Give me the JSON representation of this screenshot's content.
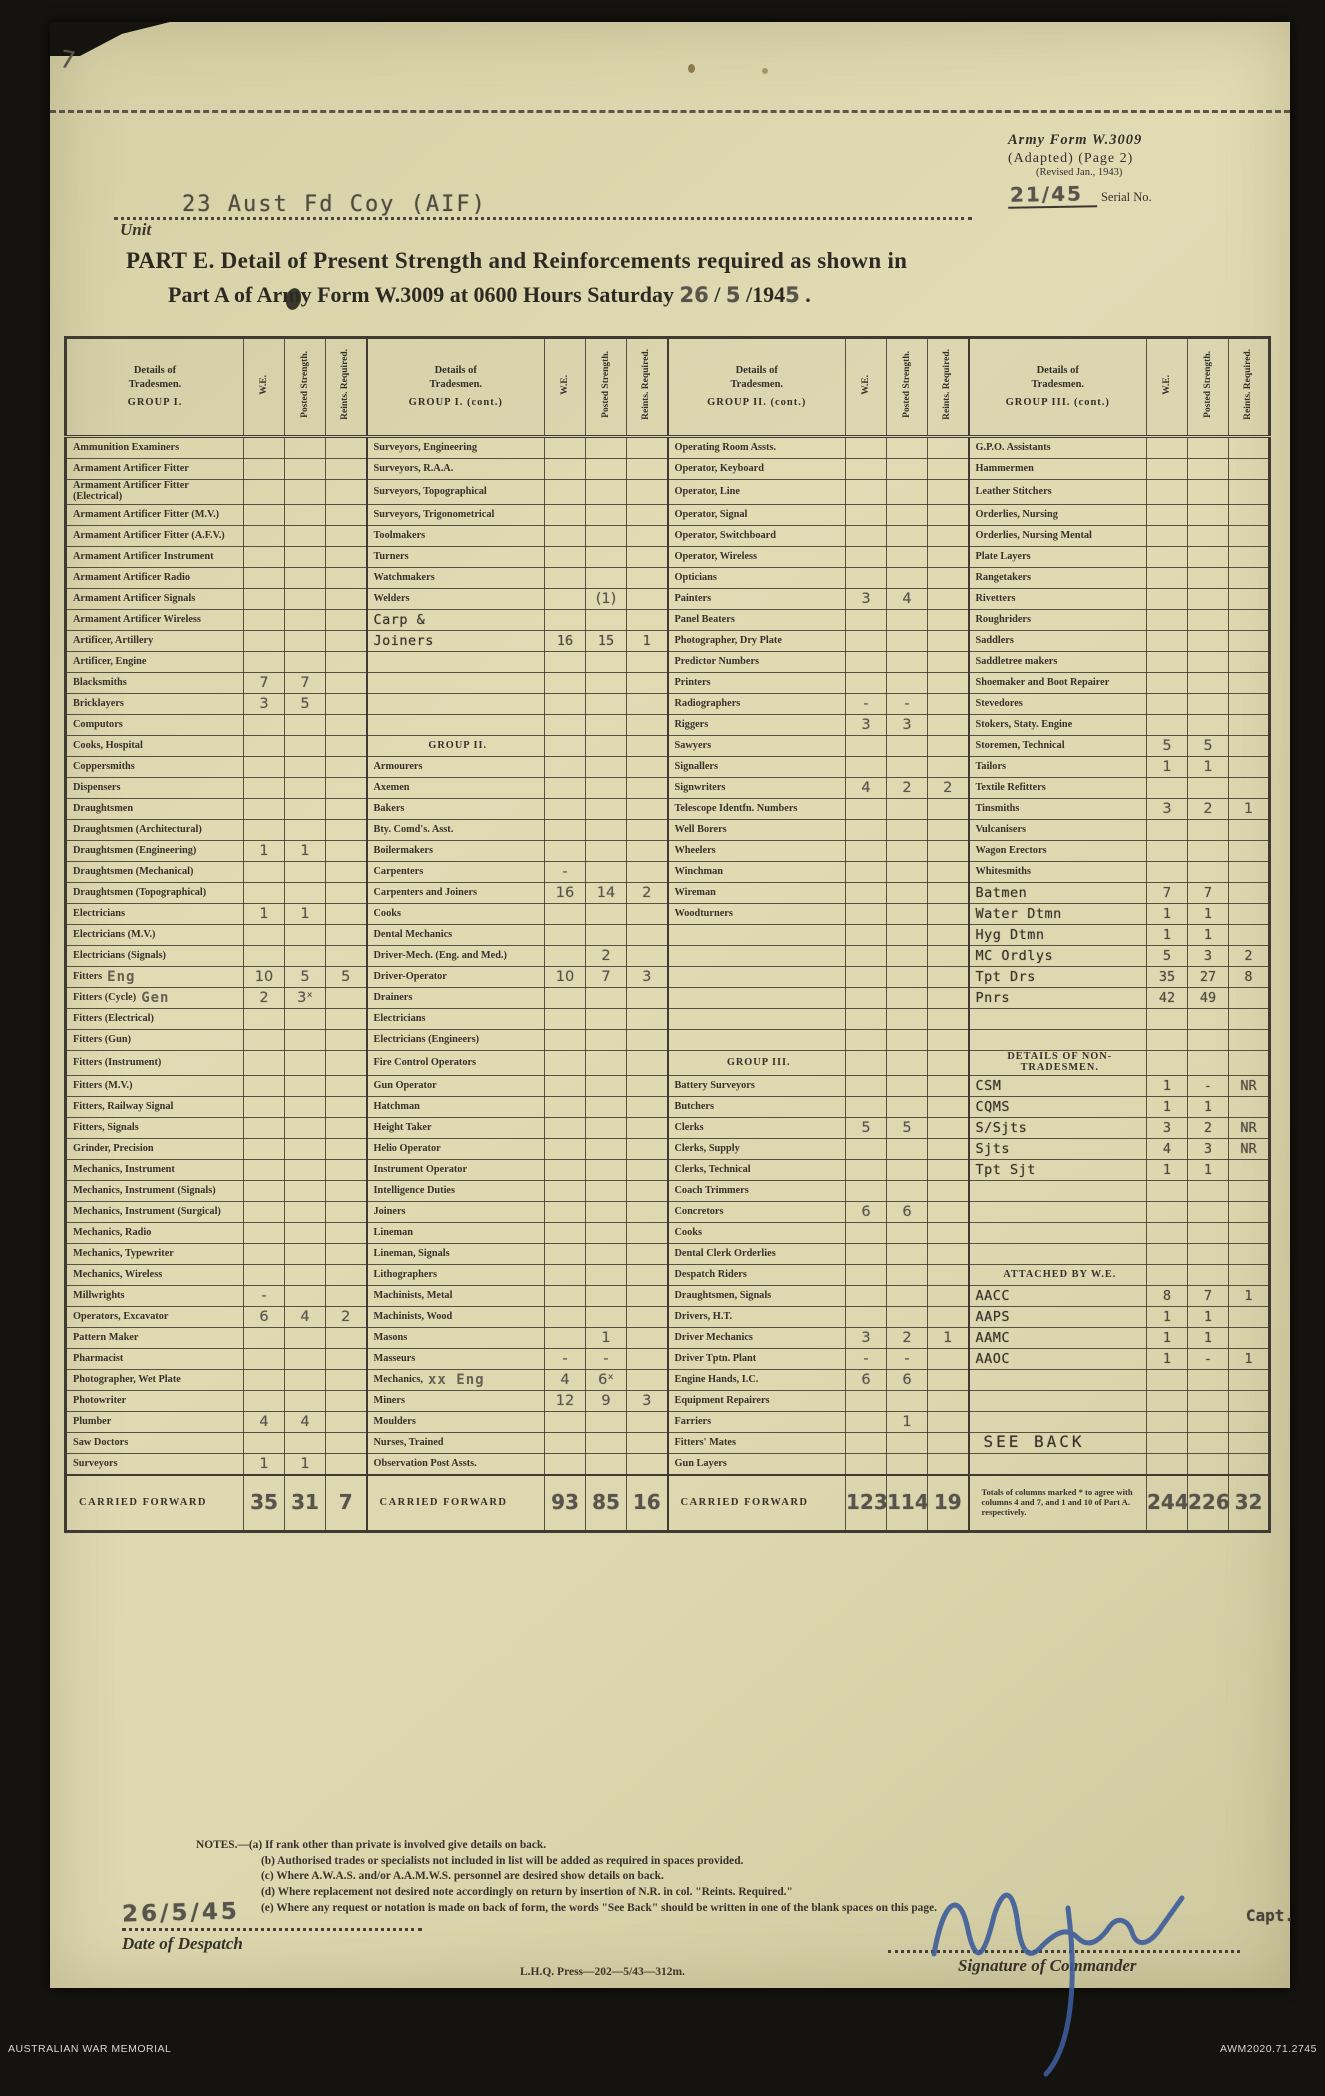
{
  "header": {
    "corner_mark": "7",
    "unit_value": "23 Aust Fd Coy (AIF)",
    "unit_label": "Unit",
    "form_name": "Army Form W.3009",
    "form_sub": "(Adapted) (Page 2)",
    "form_revised": "(Revised Jan., 1943)",
    "serial_value": "21/45",
    "serial_label": "Serial No."
  },
  "title": {
    "line1": "PART E.  Detail of Present Strength and Reinforcements required as shown in",
    "line2_printed": "Part A of Army Form W.3009 at 0600 Hours Saturday",
    "date_day": "26",
    "date_sep1": " / ",
    "date_month": "5",
    "date_sep2": " /194",
    "date_year_digit": "5",
    "date_end": " ."
  },
  "table": {
    "details_lines": [
      "Details of",
      "Tradesmen."
    ],
    "groups": [
      {
        "title": "GROUP I."
      },
      {
        "title": "GROUP I. (cont.)"
      },
      {
        "title": "GROUP II. (cont.)"
      },
      {
        "title": "GROUP III. (cont.)"
      }
    ],
    "value_headers": [
      "W.E.",
      "Posted Strength.",
      "Reints. Required."
    ],
    "rows": [
      [
        {
          "l": "Ammunition Examiners"
        },
        {
          "l": "Surveyors, Engineering"
        },
        {
          "l": "Operating Room Assts."
        },
        {
          "l": "G.P.O. Assistants"
        }
      ],
      [
        {
          "l": "Armament Artificer Fitter"
        },
        {
          "l": "Surveyors, R.A.A."
        },
        {
          "l": "Operator, Keyboard"
        },
        {
          "l": "Hammermen"
        }
      ],
      [
        {
          "l": "Armament Artificer Fitter (Electrical)"
        },
        {
          "l": "Surveyors, Topographical"
        },
        {
          "l": "Operator, Line"
        },
        {
          "l": "Leather Stitchers"
        }
      ],
      [
        {
          "l": "Armament Artificer Fitter (M.V.)"
        },
        {
          "l": "Surveyors, Trigonometrical"
        },
        {
          "l": "Operator, Signal"
        },
        {
          "l": "Orderlies, Nursing"
        }
      ],
      [
        {
          "l": "Armament Artificer Fitter (A.F.V.)"
        },
        {
          "l": "Toolmakers"
        },
        {
          "l": "Operator, Switchboard"
        },
        {
          "l": "Orderlies, Nursing Mental"
        }
      ],
      [
        {
          "l": "Armament Artificer Instrument"
        },
        {
          "l": "Turners"
        },
        {
          "l": "Operator, Wireless"
        },
        {
          "l": "Plate Layers"
        }
      ],
      [
        {
          "l": "Armament Artificer Radio"
        },
        {
          "l": "Watchmakers"
        },
        {
          "l": "Opticians"
        },
        {
          "l": "Rangetakers"
        }
      ],
      [
        {
          "l": "Armament Artificer Signals"
        },
        {
          "l": "Welders",
          "ps": "(1)"
        },
        {
          "l": "Painters",
          "we": "3",
          "ps": "4"
        },
        {
          "l": "Rivetters"
        }
      ],
      [
        {
          "l": "Armament Artificer Wireless"
        },
        {
          "l": "Carp &",
          "ty": 1
        },
        {
          "l": "Panel Beaters"
        },
        {
          "l": "Roughriders"
        }
      ],
      [
        {
          "l": "Artificer, Artillery"
        },
        {
          "l": "Joiners",
          "ty": 1,
          "we": "16",
          "ps": "15",
          "rr": "1"
        },
        {
          "l": "Photographer, Dry Plate"
        },
        {
          "l": "Saddlers"
        }
      ],
      [
        {
          "l": "Artificer, Engine"
        },
        null,
        {
          "l": "Predictor Numbers"
        },
        {
          "l": "Saddletree makers"
        }
      ],
      [
        {
          "l": "Blacksmiths",
          "we": "7",
          "ps": "7"
        },
        null,
        {
          "l": "Printers"
        },
        {
          "l": "Shoemaker and Boot Repairer"
        }
      ],
      [
        {
          "l": "Bricklayers",
          "we": "3",
          "ps": "5"
        },
        null,
        {
          "l": "Radiographers",
          "we": "-",
          "ps": "-"
        },
        {
          "l": "Stevedores"
        }
      ],
      [
        {
          "l": "Computors"
        },
        null,
        {
          "l": "Riggers",
          "we": "3",
          "ps": "3"
        },
        {
          "l": "Stokers, Staty. Engine"
        }
      ],
      [
        {
          "l": "Cooks, Hospital"
        },
        {
          "l": "GROUP II.",
          "h": 1
        },
        {
          "l": "Sawyers"
        },
        {
          "l": "Storemen, Technical",
          "we": "5",
          "ps": "5"
        }
      ],
      [
        {
          "l": "Coppersmiths"
        },
        {
          "l": "Armourers"
        },
        {
          "l": "Signallers"
        },
        {
          "l": "Tailors",
          "we": "1",
          "ps": "1"
        }
      ],
      [
        {
          "l": "Dispensers"
        },
        {
          "l": "Axemen"
        },
        {
          "l": "Signwriters",
          "we": "4",
          "ps": "2",
          "rr": "2"
        },
        {
          "l": "Textile Refitters"
        }
      ],
      [
        {
          "l": "Draughtsmen"
        },
        {
          "l": "Bakers"
        },
        {
          "l": "Telescope Identfn. Numbers"
        },
        {
          "l": "Tinsmiths",
          "we": "3",
          "ps": "2",
          "rr": "1"
        }
      ],
      [
        {
          "l": "Draughtsmen (Architectural)"
        },
        {
          "l": "Bty. Comd's. Asst."
        },
        {
          "l": "Well Borers"
        },
        {
          "l": "Vulcanisers"
        }
      ],
      [
        {
          "l": "Draughtsmen (Engineering)",
          "we": "1",
          "ps": "1"
        },
        {
          "l": "Boilermakers"
        },
        {
          "l": "Wheelers"
        },
        {
          "l": "Wagon Erectors"
        }
      ],
      [
        {
          "l": "Draughtsmen (Mechanical)"
        },
        {
          "l": "Carpenters",
          "we": "-"
        },
        {
          "l": "Winchman"
        },
        {
          "l": "Whitesmiths"
        }
      ],
      [
        {
          "l": "Draughtsmen (Topographical)"
        },
        {
          "l": "Carpenters and Joiners",
          "we": "16",
          "ps": "14",
          "rr": "2"
        },
        {
          "l": "Wireman"
        },
        {
          "l": "Batmen",
          "ty": 1,
          "we": "7",
          "ps": "7"
        }
      ],
      [
        {
          "l": "Electricians",
          "we": "1",
          "ps": "1"
        },
        {
          "l": "Cooks"
        },
        {
          "l": "Woodturners"
        },
        {
          "l": "Water Dtmn",
          "ty": 1,
          "we": "1",
          "ps": "1"
        }
      ],
      [
        {
          "l": "Electricians (M.V.)"
        },
        {
          "l": "Dental Mechanics"
        },
        null,
        {
          "l": "Hyg Dtmn",
          "ty": 1,
          "we": "1",
          "ps": "1"
        }
      ],
      [
        {
          "l": "Electricians (Signals)"
        },
        {
          "l": "Driver-Mech. (Eng. and Med.)",
          "ps": "2"
        },
        null,
        {
          "l": "MC Ordlys",
          "ty": 1,
          "we": "5",
          "ps": "3",
          "rr": "2"
        }
      ],
      [
        {
          "l": "Fitters",
          "st": "Eng",
          "we": "10",
          "ps": "5",
          "rr": "5"
        },
        {
          "l": "Driver-Operator",
          "we": "10",
          "ps": "7",
          "rr": "3"
        },
        null,
        {
          "l": "Tpt Drs",
          "ty": 1,
          "we": "35",
          "ps": "27",
          "rr": "8"
        }
      ],
      [
        {
          "l": "Fitters (Cycle)",
          "st": "Gen",
          "we": "2",
          "ps": "3ˣ"
        },
        {
          "l": "Drainers"
        },
        null,
        {
          "l": "Pnrs",
          "ty": 1,
          "we": "42",
          "ps": "49"
        }
      ],
      [
        {
          "l": "Fitters (Electrical)"
        },
        {
          "l": "Electricians"
        },
        null,
        null
      ],
      [
        {
          "l": "Fitters (Gun)"
        },
        {
          "l": "Electricians (Engineers)"
        },
        null,
        null
      ],
      [
        {
          "l": "Fitters (Instrument)"
        },
        {
          "l": "Fire Control Operators"
        },
        {
          "l": "GROUP III.",
          "h": 1
        },
        {
          "l": "DETAILS OF NON-TRADESMEN.",
          "h": 1
        }
      ],
      [
        {
          "l": "Fitters (M.V.)"
        },
        {
          "l": "Gun Operator"
        },
        {
          "l": "Battery Surveyors"
        },
        {
          "l": "CSM",
          "ty": 1,
          "we": "1",
          "ps": "-",
          "rr": "NR"
        }
      ],
      [
        {
          "l": "Fitters, Railway Signal"
        },
        {
          "l": "Hatchman"
        },
        {
          "l": "Butchers"
        },
        {
          "l": "CQMS",
          "ty": 1,
          "we": "1",
          "ps": "1"
        }
      ],
      [
        {
          "l": "Fitters, Signals"
        },
        {
          "l": "Height Taker"
        },
        {
          "l": "Clerks",
          "we": "5",
          "ps": "5"
        },
        {
          "l": "S/Sjts",
          "ty": 1,
          "we": "3",
          "ps": "2",
          "rr": "NR"
        }
      ],
      [
        {
          "l": "Grinder, Precision"
        },
        {
          "l": "Helio Operator"
        },
        {
          "l": "Clerks, Supply"
        },
        {
          "l": "Sjts",
          "ty": 1,
          "we": "4",
          "ps": "3",
          "rr": "NR"
        }
      ],
      [
        {
          "l": "Mechanics, Instrument"
        },
        {
          "l": "Instrument Operator"
        },
        {
          "l": "Clerks, Technical"
        },
        {
          "l": "Tpt Sjt",
          "ty": 1,
          "we": "1",
          "ps": "1"
        }
      ],
      [
        {
          "l": "Mechanics, Instrument (Signals)"
        },
        {
          "l": "Intelligence Duties"
        },
        {
          "l": "Coach Trimmers"
        },
        null
      ],
      [
        {
          "l": "Mechanics, Instrument (Surgical)"
        },
        {
          "l": "Joiners"
        },
        {
          "l": "Concretors",
          "we": "6",
          "ps": "6"
        },
        null
      ],
      [
        {
          "l": "Mechanics, Radio"
        },
        {
          "l": "Lineman"
        },
        {
          "l": "Cooks"
        },
        null
      ],
      [
        {
          "l": "Mechanics, Typewriter"
        },
        {
          "l": "Lineman, Signals"
        },
        {
          "l": "Dental Clerk Orderlies"
        },
        null
      ],
      [
        {
          "l": "Mechanics, Wireless"
        },
        {
          "l": "Lithographers"
        },
        {
          "l": "Despatch Riders"
        },
        {
          "l": "ATTACHED BY W.E.",
          "h": 1
        }
      ],
      [
        {
          "l": "Millwrights",
          "we": "-"
        },
        {
          "l": "Machinists, Metal"
        },
        {
          "l": "Draughtsmen, Signals"
        },
        {
          "l": "AACC",
          "ty": 1,
          "we": "8",
          "ps": "7",
          "rr": "1"
        }
      ],
      [
        {
          "l": "Operators, Excavator",
          "we": "6",
          "ps": "4",
          "rr": "2"
        },
        {
          "l": "Machinists, Wood"
        },
        {
          "l": "Drivers, H.T."
        },
        {
          "l": "AAPS",
          "ty": 1,
          "we": "1",
          "ps": "1"
        }
      ],
      [
        {
          "l": "Pattern Maker"
        },
        {
          "l": "Masons",
          "ps": "1"
        },
        {
          "l": "Driver Mechanics",
          "we": "3",
          "ps": "2",
          "rr": "1"
        },
        {
          "l": "AAMC",
          "ty": 1,
          "we": "1",
          "ps": "1"
        }
      ],
      [
        {
          "l": "Pharmacist"
        },
        {
          "l": "Masseurs",
          "we": "-",
          "ps": "-"
        },
        {
          "l": "Driver Tptn. Plant",
          "we": "-",
          "ps": "-"
        },
        {
          "l": "AAOC",
          "ty": 1,
          "we": "1",
          "ps": "-",
          "rr": "1"
        }
      ],
      [
        {
          "l": "Photographer, Wet Plate"
        },
        {
          "l": "Mechanics,",
          "st": "xx Eng",
          "we": "4",
          "ps": "6ˣ"
        },
        {
          "l": "Engine Hands, I.C.",
          "we": "6",
          "ps": "6"
        },
        null
      ],
      [
        {
          "l": "Photowriter"
        },
        {
          "l": "Miners",
          "we": "12",
          "ps": "9",
          "rr": "3"
        },
        {
          "l": "Equipment Repairers"
        },
        null
      ],
      [
        {
          "l": "Plumber",
          "we": "4",
          "ps": "4"
        },
        {
          "l": "Moulders"
        },
        {
          "l": "Farriers",
          "ps": "1"
        },
        null
      ],
      [
        {
          "l": "Saw Doctors"
        },
        {
          "l": "Nurses, Trained"
        },
        {
          "l": "Fitters' Mates"
        },
        {
          "l": "SEE BACK",
          "ty": 1,
          "big": 1
        }
      ],
      [
        {
          "l": "Surveyors",
          "we": "1",
          "ps": "1"
        },
        {
          "l": "Observation Post Assts."
        },
        {
          "l": "Gun Layers"
        },
        null
      ],
      [
        {
          "l": "CARRIED FORWARD",
          "cf": 1,
          "we": "35",
          "ps": "31",
          "rr": "7"
        },
        {
          "l": "CARRIED FORWARD",
          "cf": 1,
          "we": "93",
          "ps": "85",
          "rr": "16"
        },
        {
          "l": "CARRIED FORWARD",
          "cf": 1,
          "we": "123",
          "ps": "114",
          "rr": "19"
        },
        {
          "l": "Totals of columns marked * to agree with columns 4 and 7, and 1 and 10 of Part A. respectively.",
          "cf": 1,
          "note": 1,
          "we": "244",
          "ps": "226",
          "rr": "32"
        }
      ]
    ]
  },
  "notes": {
    "label": "NOTES.—",
    "items": [
      "(a) If rank other than private is involved give details on back.",
      "(b) Authorised trades or specialists not included in list will be added as required in spaces provided.",
      "(c) Where A.W.A.S. and/or A.A.M.W.S. personnel are desired show details on back.",
      "(d) Where replacement not desired note accordingly on return by insertion of N.R. in col. \"Reints. Required.\"",
      "(e) Where any request or notation is made on back of form, the words \"See Back\" should be written in one of the blank spaces on this page."
    ]
  },
  "footer": {
    "date_value": "26/5/45",
    "date_label": "Date of Despatch",
    "press_line": "L.H.Q. Press—202—5/43—312m.",
    "signature_label": "Signature of Commander",
    "rank": "Capt."
  },
  "archive": {
    "left": "AUSTRALIAN WAR MEMORIAL",
    "right": "AWM2020.71.2745"
  }
}
